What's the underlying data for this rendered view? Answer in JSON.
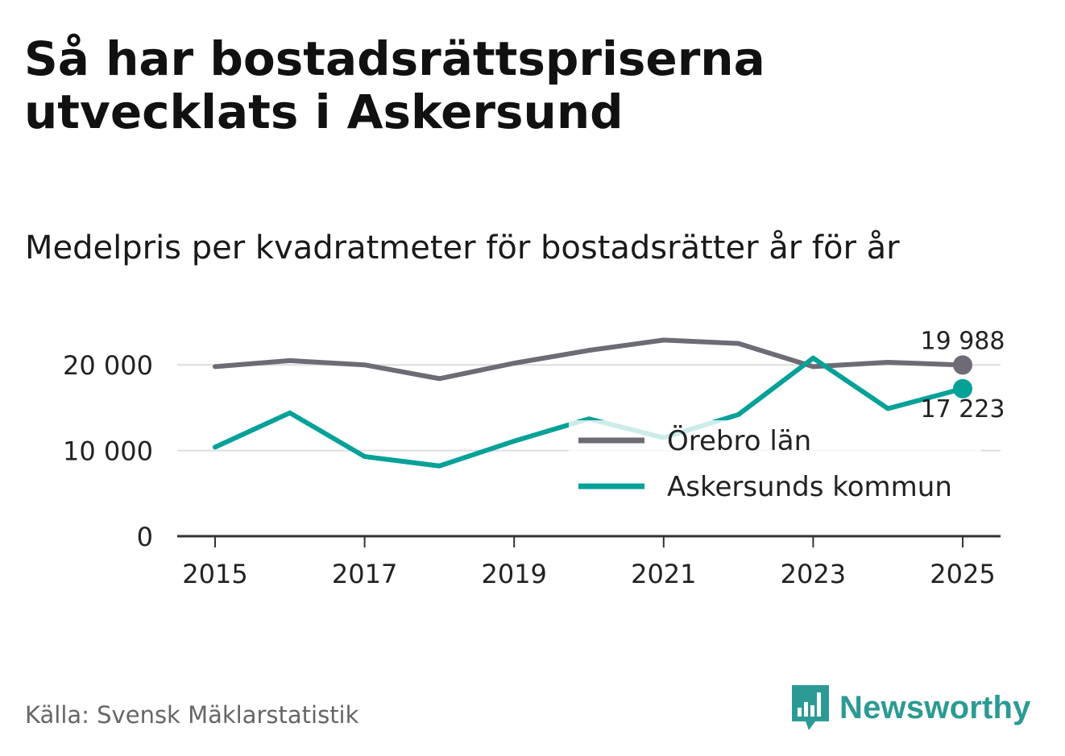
{
  "header": {
    "title": "Så har bostadsrättspriserna utvecklats i Askersund",
    "subtitle": "Medelpris per kvadratmeter för bostadsrätter år för år"
  },
  "footer": {
    "source": "Källa: Svensk Mäklarstatistik",
    "brand": "Newsworthy"
  },
  "colors": {
    "orebro": "#6e6b76",
    "askersund": "#04a198",
    "grid": "#dddddd",
    "axis": "#333333",
    "text": "#222222"
  },
  "chart_data": {
    "type": "line",
    "title": "Medelpris per kvadratmeter för bostadsrätter år för år",
    "x": [
      2015,
      2016,
      2017,
      2018,
      2019,
      2020,
      2021,
      2022,
      2023,
      2024,
      2025
    ],
    "x_ticks": [
      2015,
      2017,
      2019,
      2021,
      2023,
      2025
    ],
    "x_tick_labels": [
      "2015",
      "2017",
      "2019",
      "2021",
      "2023",
      "2025"
    ],
    "y_ticks": [
      0,
      10000,
      20000
    ],
    "y_tick_labels": [
      "0",
      "10 000",
      "20 000"
    ],
    "ylim": [
      0,
      23500
    ],
    "grid": true,
    "legend_position": "lower-right",
    "series": [
      {
        "name": "Örebro län",
        "key": "orebro",
        "values": [
          19800,
          20500,
          20000,
          18400,
          20200,
          21700,
          22900,
          22500,
          19800,
          20300,
          19988
        ],
        "end_label": "19 988"
      },
      {
        "name": "Askersunds kommun",
        "key": "askersund",
        "values": [
          10400,
          14400,
          9300,
          8200,
          11100,
          13700,
          11500,
          14200,
          20800,
          14900,
          17223
        ],
        "end_label": "17 223"
      }
    ]
  }
}
